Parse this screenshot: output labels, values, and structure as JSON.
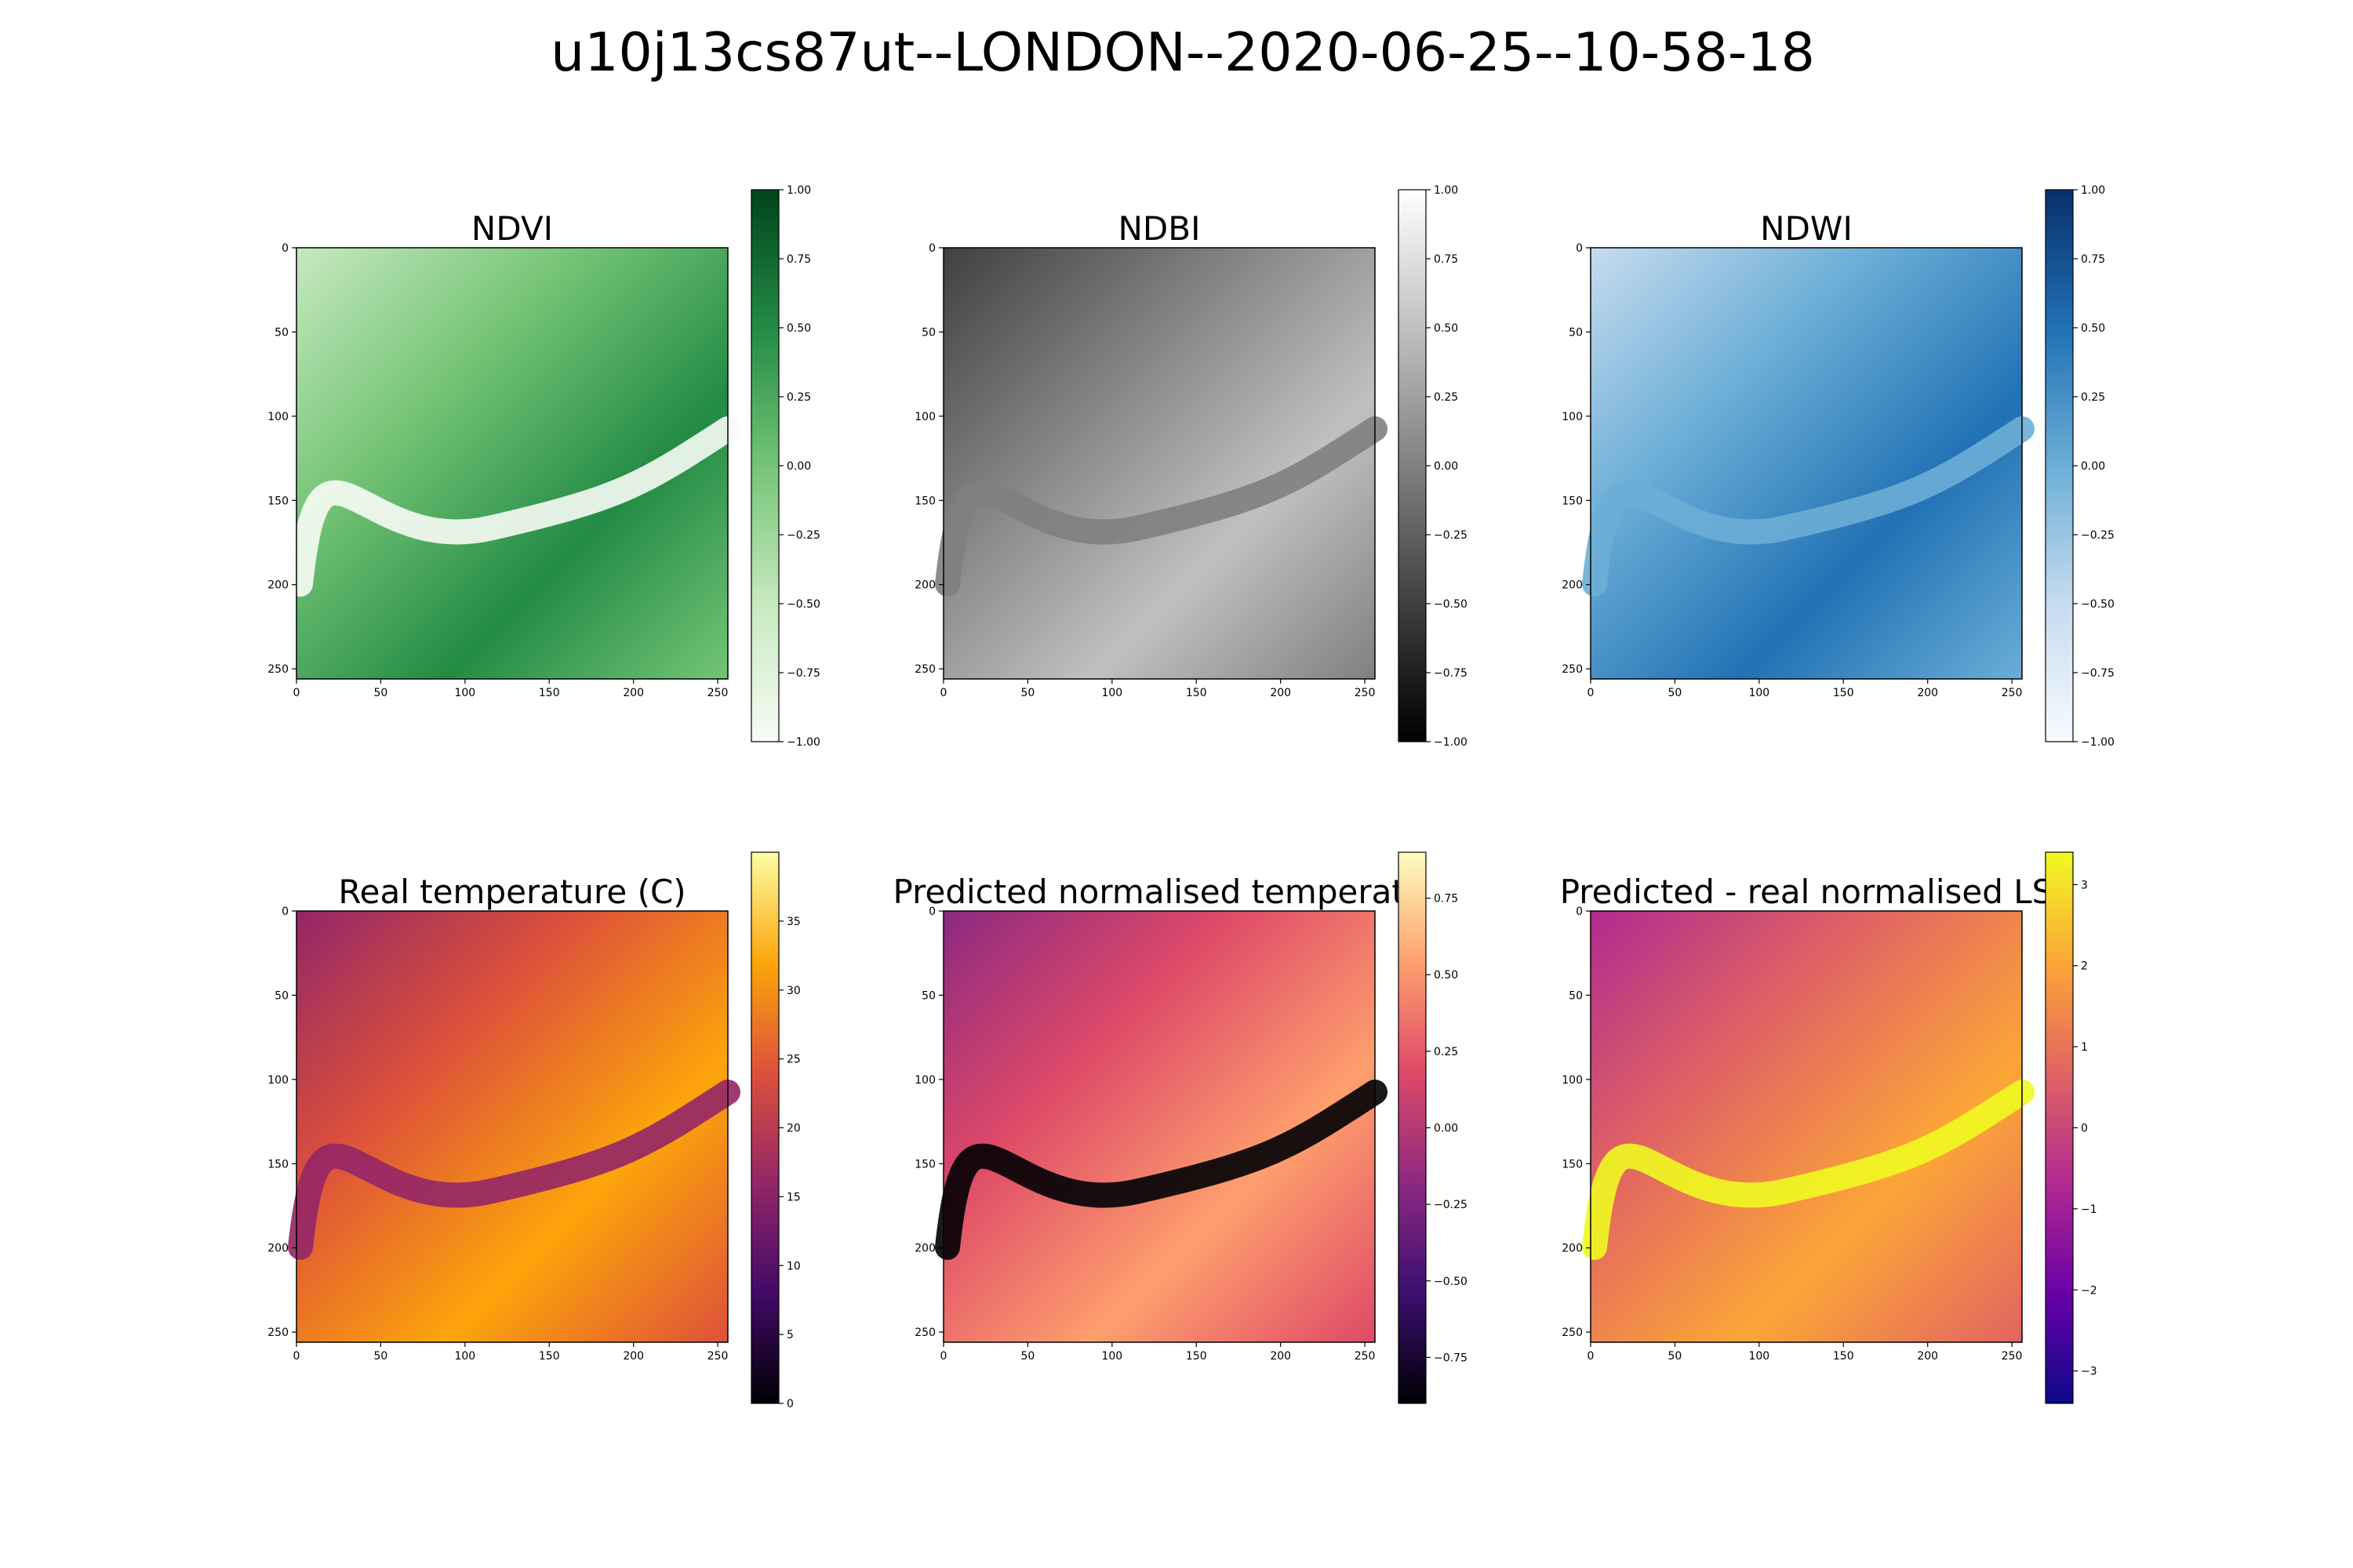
{
  "figure": {
    "title": "u10j13cs87ut--LONDON--2020-06-25--10-58-18"
  },
  "chart_data": [
    {
      "type": "heatmap",
      "title": "NDVI",
      "cmap": "Greens",
      "colors": [
        "#f7fcf5",
        "#c7e9c0",
        "#74c476",
        "#238b45",
        "#00441b"
      ],
      "xlim": [
        0,
        256
      ],
      "ylim": [
        256,
        0
      ],
      "xticks": [
        "0",
        "50",
        "100",
        "150",
        "200",
        "250"
      ],
      "yticks": [
        "0",
        "50",
        "100",
        "150",
        "200",
        "250"
      ],
      "colorbar": {
        "range": [
          -1,
          1
        ],
        "ticks": [
          "−1.00",
          "−0.75",
          "−0.50",
          "−0.25",
          "0.00",
          "0.25",
          "0.50",
          "0.75",
          "1.00"
        ]
      }
    },
    {
      "type": "heatmap",
      "title": "NDBI",
      "cmap": "Greys_r",
      "colors": [
        "#000000",
        "#404040",
        "#808080",
        "#c0c0c0",
        "#ffffff"
      ],
      "xlim": [
        0,
        256
      ],
      "ylim": [
        256,
        0
      ],
      "xticks": [
        "0",
        "50",
        "100",
        "150",
        "200",
        "250"
      ],
      "yticks": [
        "0",
        "50",
        "100",
        "150",
        "200",
        "250"
      ],
      "colorbar": {
        "range": [
          -1,
          1
        ],
        "ticks": [
          "−1.00",
          "−0.75",
          "−0.50",
          "−0.25",
          "0.00",
          "0.25",
          "0.50",
          "0.75",
          "1.00"
        ]
      }
    },
    {
      "type": "heatmap",
      "title": "NDWI",
      "cmap": "Blues",
      "colors": [
        "#f7fbff",
        "#c6dbef",
        "#6baed6",
        "#2171b5",
        "#08306b"
      ],
      "xlim": [
        0,
        256
      ],
      "ylim": [
        256,
        0
      ],
      "xticks": [
        "0",
        "50",
        "100",
        "150",
        "200",
        "250"
      ],
      "yticks": [
        "0",
        "50",
        "100",
        "150",
        "200",
        "250"
      ],
      "colorbar": {
        "range": [
          -1,
          1
        ],
        "ticks": [
          "−1.00",
          "−0.75",
          "−0.50",
          "−0.25",
          "0.00",
          "0.25",
          "0.50",
          "0.75",
          "1.00"
        ]
      }
    },
    {
      "type": "heatmap",
      "title": "Real temperature (C)",
      "cmap": "inferno",
      "colors": [
        "#000004",
        "#420a68",
        "#932667",
        "#dd513a",
        "#fca50a",
        "#fcffa4"
      ],
      "xlim": [
        0,
        256
      ],
      "ylim": [
        256,
        0
      ],
      "xticks": [
        "0",
        "50",
        "100",
        "150",
        "200",
        "250"
      ],
      "yticks": [
        "0",
        "50",
        "100",
        "150",
        "200",
        "250"
      ],
      "colorbar": {
        "range": [
          0,
          40
        ],
        "ticks": [
          "0",
          "5",
          "10",
          "15",
          "20",
          "25",
          "30",
          "35"
        ]
      }
    },
    {
      "type": "heatmap",
      "title": "Predicted normalised temperatu",
      "cmap": "magma",
      "colors": [
        "#000004",
        "#3b0f70",
        "#8c2981",
        "#de4968",
        "#fe9f6d",
        "#fcfdbf"
      ],
      "xlim": [
        0,
        256
      ],
      "ylim": [
        256,
        0
      ],
      "xticks": [
        "0",
        "50",
        "100",
        "150",
        "200",
        "250"
      ],
      "yticks": [
        "0",
        "50",
        "100",
        "150",
        "200",
        "250"
      ],
      "colorbar": {
        "range": [
          -0.9,
          0.9
        ],
        "ticks": [
          "−0.75",
          "−0.50",
          "−0.25",
          "0.00",
          "0.25",
          "0.50",
          "0.75"
        ]
      }
    },
    {
      "type": "heatmap",
      "title": "Predicted - real normalised LS",
      "cmap": "plasma",
      "colors": [
        "#0d0887",
        "#6a00a8",
        "#b12a90",
        "#e16462",
        "#fca636",
        "#f0f921"
      ],
      "xlim": [
        0,
        256
      ],
      "ylim": [
        256,
        0
      ],
      "xticks": [
        "0",
        "50",
        "100",
        "150",
        "200",
        "250"
      ],
      "yticks": [
        "0",
        "50",
        "100",
        "150",
        "200",
        "250"
      ],
      "colorbar": {
        "range": [
          -3.4,
          3.4
        ],
        "ticks": [
          "−3",
          "−2",
          "−1",
          "0",
          "1",
          "2",
          "3"
        ]
      }
    }
  ]
}
